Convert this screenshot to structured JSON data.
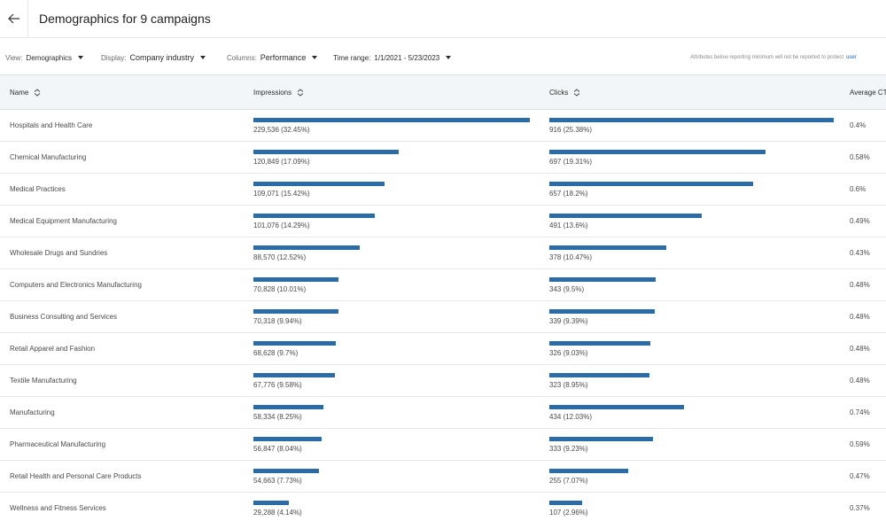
{
  "header": {
    "title": "Demographics for 9 campaigns",
    "back_icon": "arrow-left-icon"
  },
  "filters": {
    "view": {
      "label": "View:",
      "value": "Demographics"
    },
    "display": {
      "label": "Display:",
      "value": "Company industry"
    },
    "columns": {
      "label": "Columns:",
      "value": "Performance"
    },
    "time_range": {
      "label": "Time range:",
      "value": "1/1/2021 - 5/23/2023"
    },
    "note": "Attributes below reporting minimum will not be reported to protect",
    "note_link": "user"
  },
  "table": {
    "columns": {
      "name": "Name",
      "impressions": "Impressions",
      "clicks": "Clicks",
      "ctr": "Average CT"
    },
    "bar_color": "#2b6ca6",
    "rows": [
      {
        "name": "Hospitals and Health Care",
        "impressions": "229,536 (32.45%)",
        "imp_pct": 32.45,
        "clicks": "916 (25.38%)",
        "clk_pct": 25.38,
        "ctr": "0.4%"
      },
      {
        "name": "Chemical Manufacturing",
        "impressions": "120,849 (17.09%)",
        "imp_pct": 17.09,
        "clicks": "697 (19.31%)",
        "clk_pct": 19.31,
        "ctr": "0.58%"
      },
      {
        "name": "Medical Practices",
        "impressions": "109,071 (15.42%)",
        "imp_pct": 15.42,
        "clicks": "657 (18.2%)",
        "clk_pct": 18.2,
        "ctr": "0.6%"
      },
      {
        "name": "Medical Equipment Manufacturing",
        "impressions": "101,076 (14.29%)",
        "imp_pct": 14.29,
        "clicks": "491 (13.6%)",
        "clk_pct": 13.6,
        "ctr": "0.49%"
      },
      {
        "name": "Wholesale Drugs and Sundries",
        "impressions": "88,570 (12.52%)",
        "imp_pct": 12.52,
        "clicks": "378 (10.47%)",
        "clk_pct": 10.47,
        "ctr": "0.43%"
      },
      {
        "name": "Computers and Electronics Manufacturing",
        "impressions": "70,828 (10.01%)",
        "imp_pct": 10.01,
        "clicks": "343 (9.5%)",
        "clk_pct": 9.5,
        "ctr": "0.48%"
      },
      {
        "name": "Business Consulting and Services",
        "impressions": "70,318 (9.94%)",
        "imp_pct": 9.94,
        "clicks": "339 (9.39%)",
        "clk_pct": 9.39,
        "ctr": "0.48%"
      },
      {
        "name": "Retail Apparel and Fashion",
        "impressions": "68,628 (9.7%)",
        "imp_pct": 9.7,
        "clicks": "326 (9.03%)",
        "clk_pct": 9.03,
        "ctr": "0.48%"
      },
      {
        "name": "Textile Manufacturing",
        "impressions": "67,776 (9.58%)",
        "imp_pct": 9.58,
        "clicks": "323 (8.95%)",
        "clk_pct": 8.95,
        "ctr": "0.48%"
      },
      {
        "name": "Manufacturing",
        "impressions": "58,334 (8.25%)",
        "imp_pct": 8.25,
        "clicks": "434 (12.03%)",
        "clk_pct": 12.03,
        "ctr": "0.74%"
      },
      {
        "name": "Pharmaceutical Manufacturing",
        "impressions": "56,847 (8.04%)",
        "imp_pct": 8.04,
        "clicks": "333 (9.23%)",
        "clk_pct": 9.23,
        "ctr": "0.59%"
      },
      {
        "name": "Retail Health and Personal Care Products",
        "impressions": "54,663 (7.73%)",
        "imp_pct": 7.73,
        "clicks": "255 (7.07%)",
        "clk_pct": 7.07,
        "ctr": "0.47%"
      },
      {
        "name": "Wellness and Fitness Services",
        "impressions": "29,288 (4.14%)",
        "imp_pct": 4.14,
        "clicks": "107 (2.96%)",
        "clk_pct": 2.96,
        "ctr": "0.37%"
      }
    ]
  }
}
